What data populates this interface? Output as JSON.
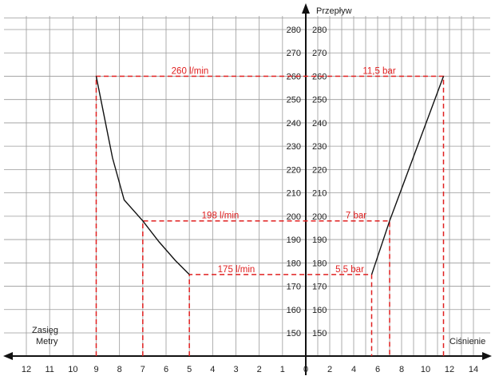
{
  "chart_data": {
    "type": "line",
    "ylabel": "Przepływ",
    "xlabel_right": "Ciśnienie",
    "xlabel_left": "Zasięg\nMetry",
    "y_ticks": [
      150,
      160,
      170,
      180,
      190,
      200,
      210,
      220,
      230,
      240,
      250,
      260,
      270,
      280
    ],
    "ylim": [
      140,
      285
    ],
    "left_ticks": [
      12,
      11,
      10,
      9,
      8,
      7,
      6,
      5,
      4,
      3,
      2,
      1,
      0
    ],
    "right_ticks": [
      0,
      2,
      4,
      6,
      8,
      10,
      12,
      14
    ],
    "left_xlim": [
      0,
      12
    ],
    "right_xlim": [
      0,
      14
    ],
    "grid": true,
    "series": [
      {
        "side": "left",
        "points": [
          [
            9,
            260
          ],
          [
            8.7,
            245
          ],
          [
            8.3,
            225
          ],
          [
            7.8,
            207
          ],
          [
            7,
            198
          ],
          [
            6.3,
            189
          ],
          [
            5.6,
            181
          ],
          [
            5,
            175
          ]
        ]
      },
      {
        "side": "right",
        "points": [
          [
            5.5,
            175
          ],
          [
            7,
            198
          ],
          [
            11.5,
            260
          ]
        ]
      }
    ],
    "annotations": [
      {
        "text": "260 l/min",
        "side": "left",
        "value": 260
      },
      {
        "text": "11,5 bar",
        "side": "right",
        "value": 260
      },
      {
        "text": "198 l/min",
        "side": "left",
        "value": 198
      },
      {
        "text": "7 bar",
        "side": "right",
        "value": 198
      },
      {
        "text": "175 l/min",
        "side": "left",
        "value": 175
      },
      {
        "text": "5,5 bar",
        "side": "right",
        "value": 175
      }
    ],
    "guides": [
      {
        "left_x": 9,
        "right_x": 11.5,
        "y": 260
      },
      {
        "left_x": 7,
        "right_x": 7,
        "y": 198
      },
      {
        "left_x": 5,
        "right_x": 5.5,
        "y": 175
      }
    ]
  },
  "colors": {
    "guide": "#e02020",
    "curve": "#111111",
    "grid": "#9a9a9a"
  }
}
